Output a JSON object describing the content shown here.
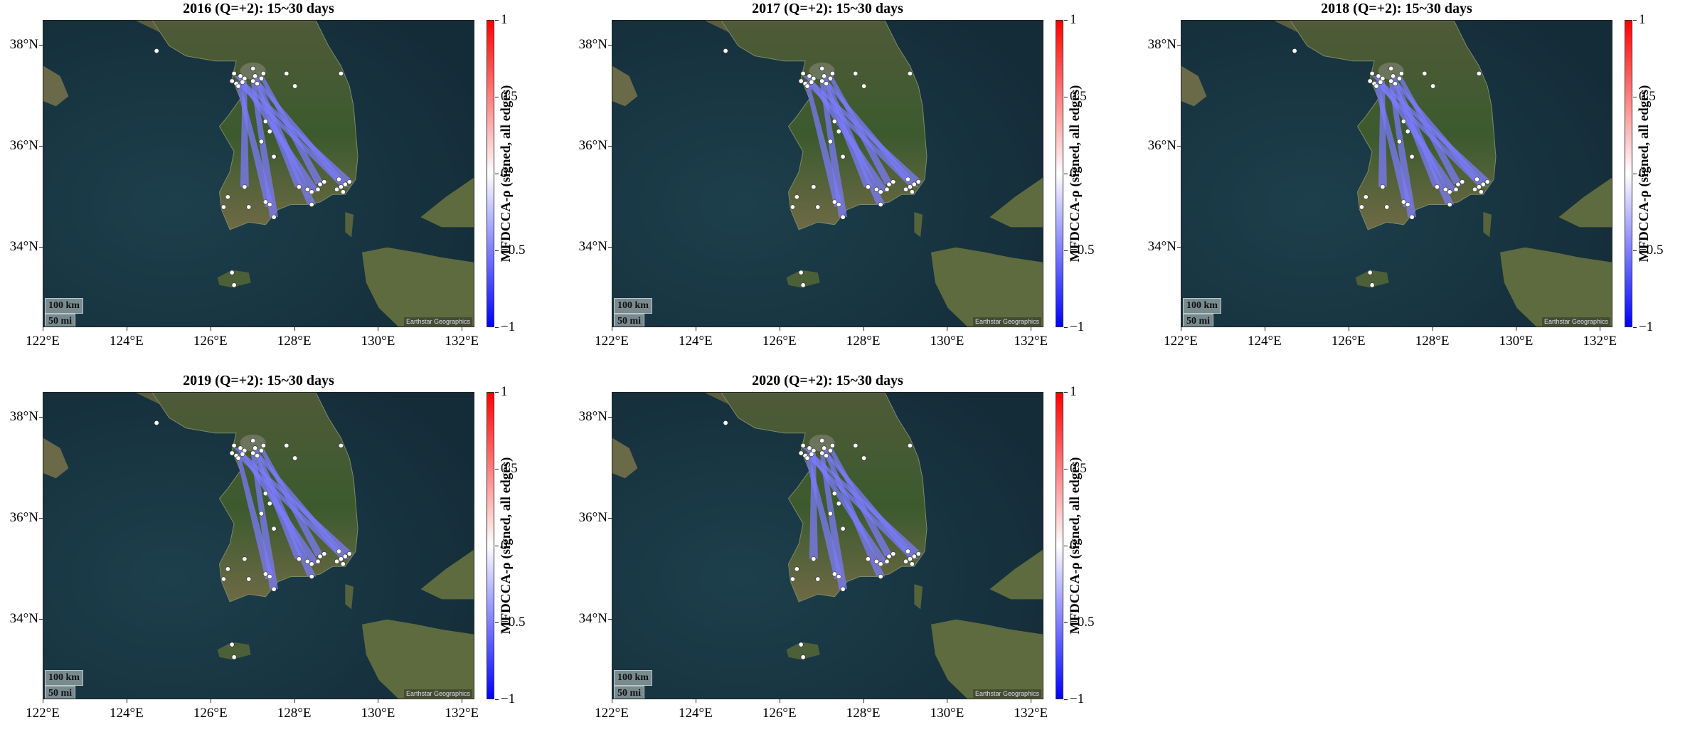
{
  "figure": {
    "panels": [
      {
        "title": "2016 (Q=+2): 15~30 days"
      },
      {
        "title": "2017 (Q=+2): 15~30 days"
      },
      {
        "title": "2018 (Q=+2): 15~30 days"
      },
      {
        "title": "2019 (Q=+2): 15~30 days"
      },
      {
        "title": "2020 (Q=+2): 15~30 days"
      }
    ],
    "colorbar": {
      "label": "MFDCCA-ρ (signed, all edges)",
      "ticks": [
        "1",
        "0.5",
        "0",
        "−0.5",
        "−1"
      ],
      "tick_values": [
        1,
        0.5,
        0,
        -0.5,
        -1
      ],
      "colors": {
        "positive": "#ff0000",
        "zero": "#ffffff",
        "negative": "#0000ff"
      }
    },
    "map": {
      "lon_range": [
        122,
        132.3
      ],
      "lat_range": [
        32.4,
        38.5
      ],
      "lon_ticks": [
        "122°E",
        "124°E",
        "126°E",
        "128°E",
        "130°E",
        "132°E"
      ],
      "lon_tick_values": [
        122,
        124,
        126,
        128,
        130,
        132
      ],
      "lat_ticks": [
        "38°N",
        "36°N",
        "34°N"
      ],
      "lat_tick_values": [
        38,
        36,
        34
      ],
      "scale_km": "100 km",
      "scale_mi": "50 mi",
      "attribution": "Earthstar Geographics",
      "edge_color": "#7b7bff",
      "node_color": "#ffffff"
    }
  },
  "chart_data": {
    "type": "scatter",
    "note_units": "lon/lat degrees",
    "stations": [
      [
        126.5,
        37.3
      ],
      [
        126.6,
        37.25
      ],
      [
        126.7,
        37.4
      ],
      [
        126.8,
        37.35
      ],
      [
        126.55,
        37.45
      ],
      [
        126.65,
        37.2
      ],
      [
        126.75,
        37.28
      ],
      [
        127.0,
        37.3
      ],
      [
        127.05,
        37.4
      ],
      [
        127.1,
        37.25
      ],
      [
        127.2,
        37.35
      ],
      [
        127.25,
        37.45
      ],
      [
        127.0,
        37.55
      ],
      [
        127.8,
        37.45
      ],
      [
        128.0,
        37.2
      ],
      [
        129.1,
        37.45
      ],
      [
        124.7,
        37.9
      ],
      [
        127.3,
        36.5
      ],
      [
        127.4,
        36.3
      ],
      [
        127.2,
        36.1
      ],
      [
        127.5,
        35.8
      ],
      [
        126.8,
        35.2
      ],
      [
        126.4,
        35.0
      ],
      [
        126.9,
        34.8
      ],
      [
        127.4,
        34.85
      ],
      [
        127.5,
        34.6
      ],
      [
        127.3,
        34.9
      ],
      [
        128.1,
        35.2
      ],
      [
        128.3,
        35.15
      ],
      [
        128.4,
        35.1
      ],
      [
        128.55,
        35.15
      ],
      [
        128.6,
        35.25
      ],
      [
        128.7,
        35.3
      ],
      [
        128.4,
        34.85
      ],
      [
        129.0,
        35.15
      ],
      [
        129.1,
        35.2
      ],
      [
        129.2,
        35.25
      ],
      [
        129.3,
        35.3
      ],
      [
        129.05,
        35.35
      ],
      [
        129.15,
        35.1
      ],
      [
        126.5,
        33.5
      ],
      [
        126.55,
        33.25
      ],
      [
        126.3,
        34.8
      ]
    ],
    "edges_per_panel": [
      [
        [
          126.6,
          37.3,
          129.2,
          35.2
        ],
        [
          126.7,
          37.35,
          128.5,
          35.1
        ],
        [
          126.65,
          37.25,
          127.4,
          34.8
        ],
        [
          127.1,
          37.3,
          129.1,
          35.3
        ],
        [
          127.05,
          37.4,
          128.4,
          34.85
        ],
        [
          126.8,
          37.3,
          126.8,
          35.2
        ],
        [
          127.0,
          37.3,
          127.5,
          34.6
        ],
        [
          127.2,
          37.4,
          128.6,
          35.25
        ],
        [
          126.6,
          37.4,
          129.3,
          35.3
        ],
        [
          127.1,
          37.2,
          128.1,
          35.2
        ]
      ],
      [
        [
          126.6,
          37.3,
          129.2,
          35.2
        ],
        [
          126.7,
          37.35,
          128.5,
          35.1
        ],
        [
          126.65,
          37.25,
          127.4,
          34.8
        ],
        [
          127.1,
          37.3,
          129.1,
          35.3
        ],
        [
          127.05,
          37.4,
          128.4,
          34.85
        ],
        [
          127.0,
          37.3,
          127.5,
          34.6
        ],
        [
          127.2,
          37.4,
          128.6,
          35.25
        ],
        [
          126.6,
          37.4,
          129.3,
          35.3
        ],
        [
          127.1,
          37.2,
          128.1,
          35.2
        ]
      ],
      [
        [
          126.6,
          37.3,
          129.2,
          35.2
        ],
        [
          126.7,
          37.35,
          128.5,
          35.1
        ],
        [
          126.65,
          37.25,
          127.4,
          34.8
        ],
        [
          127.1,
          37.3,
          129.1,
          35.3
        ],
        [
          127.05,
          37.4,
          128.4,
          34.85
        ],
        [
          126.8,
          37.3,
          126.8,
          35.2
        ],
        [
          127.0,
          37.3,
          127.5,
          34.6
        ],
        [
          127.2,
          37.4,
          128.6,
          35.25
        ],
        [
          126.6,
          37.4,
          129.3,
          35.3
        ],
        [
          127.1,
          37.2,
          128.1,
          35.2
        ]
      ],
      [
        [
          126.6,
          37.3,
          129.2,
          35.2
        ],
        [
          126.7,
          37.35,
          128.5,
          35.1
        ],
        [
          126.65,
          37.25,
          127.4,
          34.8
        ],
        [
          127.1,
          37.3,
          129.1,
          35.3
        ],
        [
          127.05,
          37.4,
          128.4,
          34.85
        ],
        [
          127.0,
          37.3,
          127.5,
          34.6
        ],
        [
          127.2,
          37.4,
          128.6,
          35.25
        ],
        [
          126.6,
          37.4,
          129.3,
          35.3
        ],
        [
          127.1,
          37.2,
          128.1,
          35.2
        ]
      ],
      [
        [
          126.6,
          37.3,
          129.2,
          35.2
        ],
        [
          126.7,
          37.35,
          128.5,
          35.1
        ],
        [
          126.65,
          37.25,
          127.4,
          34.8
        ],
        [
          127.1,
          37.3,
          129.1,
          35.3
        ],
        [
          127.05,
          37.4,
          128.4,
          34.85
        ],
        [
          126.8,
          37.3,
          126.8,
          35.2
        ],
        [
          127.0,
          37.3,
          127.5,
          34.6
        ],
        [
          127.2,
          37.4,
          128.6,
          35.25
        ],
        [
          126.6,
          37.4,
          129.3,
          35.3
        ]
      ]
    ]
  }
}
